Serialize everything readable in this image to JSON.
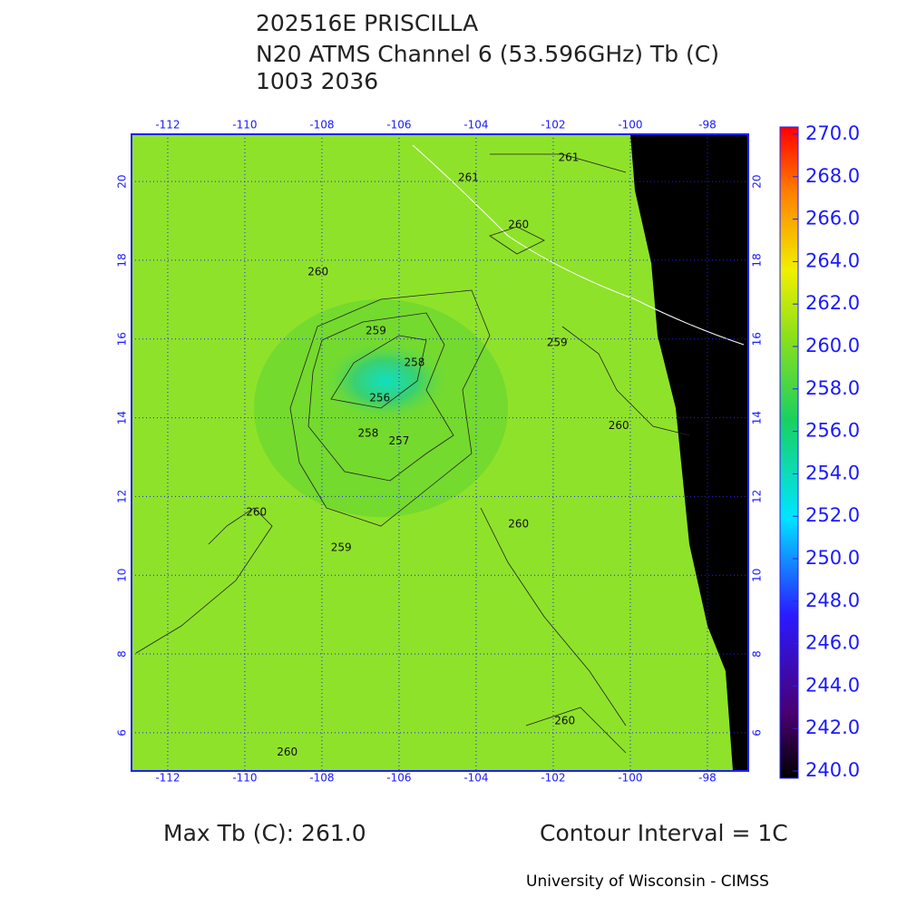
{
  "header": {
    "title": "202516E PRISCILLA",
    "subtitle": "N20 ATMS Channel 6 (53.596GHz) Tb (C)",
    "time": "1003 2036"
  },
  "map": {
    "xlim": [
      -112.94,
      -96.94
    ],
    "ylim": [
      5.03,
      21.2
    ],
    "xticks": [
      -112,
      -110,
      -108,
      -106,
      -104,
      -102,
      -100,
      -98
    ],
    "yticks": [
      6,
      8,
      10,
      12,
      14,
      16,
      18,
      20
    ],
    "contour_labels": [
      {
        "value": 261,
        "lon": -101.6,
        "lat": 20.6
      },
      {
        "value": 261,
        "lon": -104.2,
        "lat": 20.1
      },
      {
        "value": 260,
        "lon": -102.9,
        "lat": 18.9
      },
      {
        "value": 260,
        "lon": -108.1,
        "lat": 17.7
      },
      {
        "value": 259,
        "lon": -106.6,
        "lat": 16.2
      },
      {
        "value": 259,
        "lon": -101.9,
        "lat": 15.9
      },
      {
        "value": 258,
        "lon": -105.6,
        "lat": 15.4
      },
      {
        "value": 256,
        "lon": -106.5,
        "lat": 14.5
      },
      {
        "value": 258,
        "lon": -106.8,
        "lat": 13.6
      },
      {
        "value": 257,
        "lon": -106.0,
        "lat": 13.4
      },
      {
        "value": 260,
        "lon": -100.3,
        "lat": 13.8
      },
      {
        "value": 260,
        "lon": -109.7,
        "lat": 11.6
      },
      {
        "value": 259,
        "lon": -107.5,
        "lat": 10.7
      },
      {
        "value": 260,
        "lon": -102.9,
        "lat": 11.3
      },
      {
        "value": 260,
        "lon": -101.7,
        "lat": 6.3
      },
      {
        "value": 260,
        "lon": -108.9,
        "lat": 5.5
      }
    ]
  },
  "colorbar": {
    "lim": [
      240,
      270
    ],
    "ticks": [
      {
        "value": 240,
        "label": "240.0"
      },
      {
        "value": 242,
        "label": "242.0"
      },
      {
        "value": 244,
        "label": "244.0"
      },
      {
        "value": 246,
        "label": "246.0"
      },
      {
        "value": 248,
        "label": "248.0"
      },
      {
        "value": 250,
        "label": "250.0"
      },
      {
        "value": 252,
        "label": "252.0"
      },
      {
        "value": 254,
        "label": "254.0"
      },
      {
        "value": 256,
        "label": "256.0"
      },
      {
        "value": 258,
        "label": "258.0"
      },
      {
        "value": 260,
        "label": "260.0"
      },
      {
        "value": 262,
        "label": "262.0"
      },
      {
        "value": 264,
        "label": "264.0"
      },
      {
        "value": 266,
        "label": "266.0"
      },
      {
        "value": 268,
        "label": "268.0"
      },
      {
        "value": 270,
        "label": "270.0"
      }
    ]
  },
  "footer": {
    "max_tb": "Max Tb (C): 261.0",
    "contour_interval": "Contour Interval = 1C",
    "credit": "University of Wisconsin - CIMSS"
  }
}
